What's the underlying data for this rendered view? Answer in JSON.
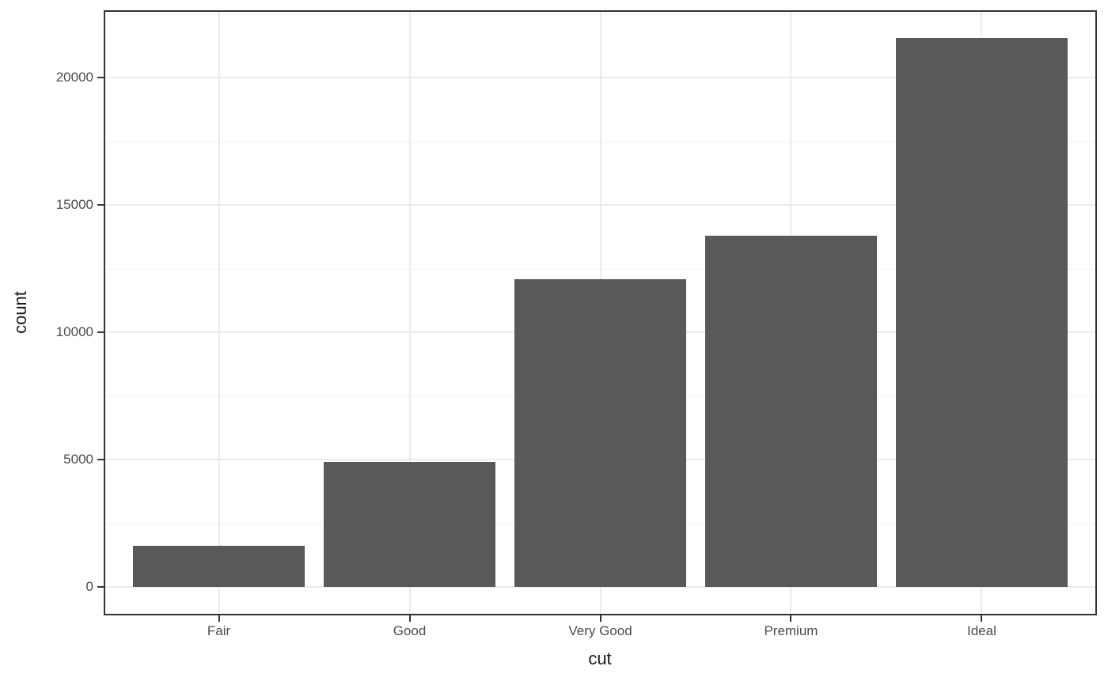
{
  "chart_data": {
    "type": "bar",
    "title": "",
    "xlabel": "cut",
    "ylabel": "count",
    "categories": [
      "Fair",
      "Good",
      "Very Good",
      "Premium",
      "Ideal"
    ],
    "values": [
      1610,
      4906,
      12082,
      13791,
      21551
    ],
    "y_ticks": [
      0,
      5000,
      10000,
      15000,
      20000
    ],
    "y_tick_labels": [
      "0",
      "5000",
      "10000",
      "15000",
      "20000"
    ],
    "y_minor_ticks": [
      2500,
      7500,
      12500,
      17500,
      22500
    ],
    "ylim": [
      -1078,
      22629
    ],
    "bar_width_fraction": 0.9,
    "grid": "horizontal major+minor, vertical major at category centers",
    "legend": "none",
    "colors": {
      "bar_fill": "#595959",
      "panel_border": "#333333",
      "axis_tick": "#333333",
      "grid_major": "#ebebeb",
      "grid_minor": "#f2f2f2",
      "tick_label": "#4d4d4d",
      "axis_title": "#1a1a1a",
      "background": "#ffffff"
    }
  }
}
